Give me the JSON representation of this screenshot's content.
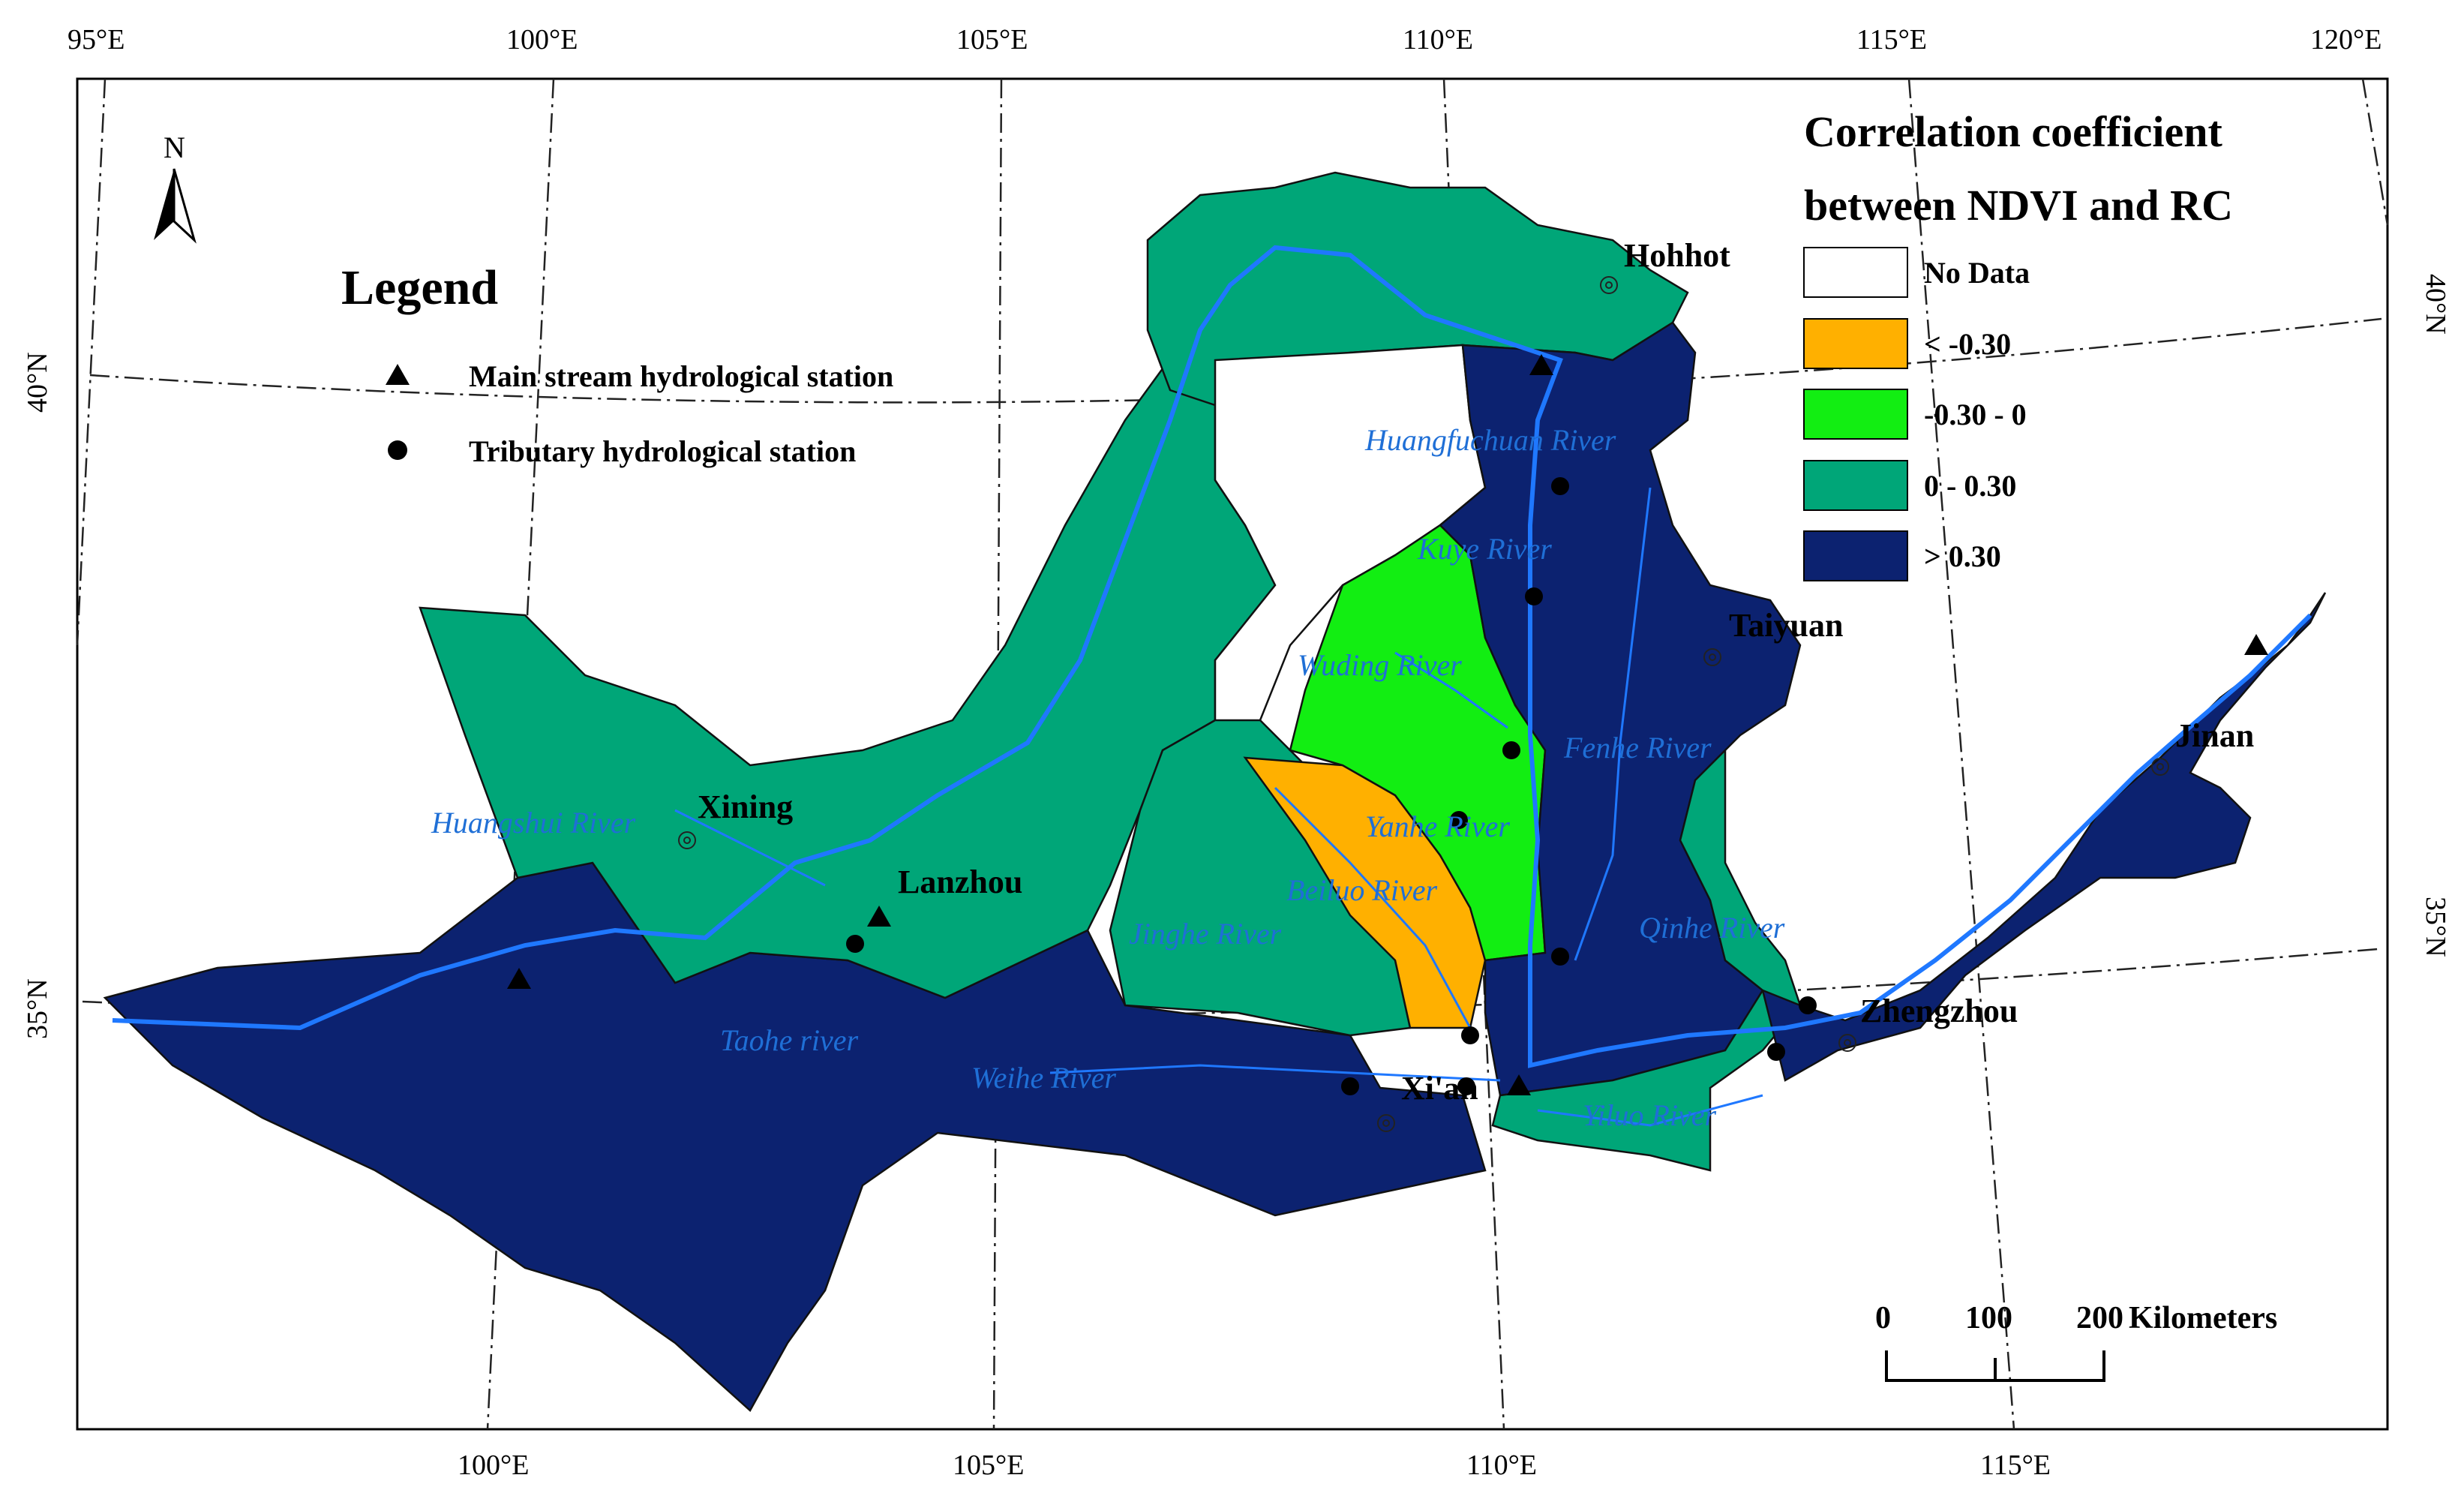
{
  "graticule": {
    "top_lon": [
      "95°E",
      "100°E",
      "105°E",
      "110°E",
      "115°E",
      "120°E"
    ],
    "bottom_lon": [
      "100°E",
      "105°E",
      "110°E",
      "115°E"
    ],
    "left_lat": [
      "40°N",
      "35°N"
    ],
    "right_lat": [
      "40°N",
      "35°N"
    ]
  },
  "legend": {
    "title": "Legend",
    "main_station": "Main stream hydrological station",
    "tributary_station": "Tributary hydrological station"
  },
  "north_arrow": "N",
  "classification": {
    "title_line1": "Correlation coefficient",
    "title_line2": "between NDVI and RC",
    "classes": [
      {
        "label": "No Data",
        "color": "#ffffff"
      },
      {
        "label": "< -0.30",
        "color": "#ffb000"
      },
      {
        "label": "-0.30 - 0",
        "color": "#12ee12"
      },
      {
        "label": "0 - 0.30",
        "color": "#00a678"
      },
      {
        "label": "> 0.30",
        "color": "#0c2270"
      }
    ]
  },
  "cities": [
    "Hohhot",
    "Taiyuan",
    "Jinan",
    "Xining",
    "Lanzhou",
    "Zhengzhou",
    "Xi'an"
  ],
  "rivers": [
    "Huangfuchuan River",
    "Kuye River",
    "Wuding River",
    "Fenhe River",
    "Yanhe River",
    "Beiluo River",
    "Jinghe River",
    "Qinhe River",
    "Huangshui River",
    "Taohe river",
    "Weihe River",
    "Yiluo River"
  ],
  "scale": {
    "ticks": [
      "0",
      "100",
      "200"
    ],
    "unit": "Kilometers"
  }
}
